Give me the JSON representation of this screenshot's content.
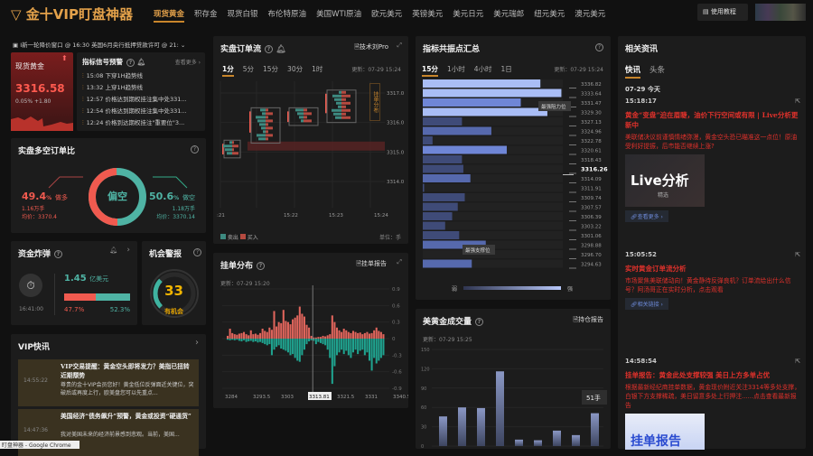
{
  "header": {
    "logo": "金十VIP盯盘神器",
    "nav": [
      "现货黄金",
      "积存金",
      "现货白银",
      "布伦特原油",
      "美国WTI原油",
      "欧元美元",
      "英镑美元",
      "美元日元",
      "美元瑞郎",
      "纽元美元",
      "澳元美元"
    ],
    "active_nav": "现货黄金",
    "tutorial": "使用教程"
  },
  "ticker": {
    "text": "I新一轮降价窗口 @ 16:30 英国6月央行抵押贷款许可 @ 21:"
  },
  "spot": {
    "name": "现货黄金",
    "price": "3316.58",
    "change_pct": "0.05%",
    "change": "+1.80"
  },
  "signals": {
    "title": "指标信号预警",
    "more": "查看更多 ›",
    "items": [
      {
        "time": "15:08",
        "text": "下穿1H趋势线"
      },
      {
        "time": "13:32",
        "text": "上穿1H趋势线"
      },
      {
        "time": "12:57",
        "text": "价格达到期权挂注集中处331..."
      },
      {
        "time": "12:54",
        "text": "价格达到期权挂注集中处331..."
      },
      {
        "time": "12:24",
        "text": "价格到达期权挂注\"重要位\"3..."
      }
    ]
  },
  "ratio": {
    "title": "实盘多空订单比",
    "center": "偏空",
    "long_pct": "49.4",
    "long_label": "做多",
    "long_lots": "1.16万手",
    "long_avg": "均价：3370.4",
    "short_pct": "50.6",
    "short_label": "做空",
    "short_lots": "1.18万手",
    "short_avg": "均价：3370.14",
    "pct_unit": "%",
    "long_value": 49.4
  },
  "bomb": {
    "title": "资金炸弹",
    "time": "16:41:00",
    "amount": "1.45",
    "unit": "亿美元",
    "left_pct": "47.7%",
    "right_pct": "52.3%",
    "left_value": 47.7
  },
  "alert": {
    "title": "机会警报",
    "value": "33",
    "label": "有机会",
    "gauge_value": 33
  },
  "vip": {
    "title": "VIP快讯",
    "items": [
      {
        "time": "14:55:22",
        "title": "VIP交易提醒：黄金空头即将发力？美指已扭转近期颓势",
        "body": "尊贵的金十VIP会员您好！黄金低位反弹面近关键位，突破后或再度上行，欧美盘您可以先重点..."
      },
      {
        "time": "14:47:36",
        "title": "美国经济“债务飙升”预警，黄金或投资“硬通货”",
        "body": "我对美国未来的经济前景感到悲观。当前，美国..."
      }
    ]
  },
  "orderflow": {
    "title": "实盘订单流",
    "pro": "技术刘Pro",
    "tabs": [
      "1分",
      "5分",
      "15分",
      "30分",
      "1时"
    ],
    "active": "1分",
    "updated": "更新：07-29 15:24",
    "side_tab": "挂单分布",
    "legend_sell": "卖出",
    "legend_buy": "买入",
    "unit": "单位：手",
    "yticks": [
      "3317.0",
      "3316.0",
      "3315.0",
      "3314.0"
    ],
    "xticks": [
      ":21",
      "15:22",
      "15:23",
      "15:24"
    ]
  },
  "depth": {
    "title": "挂单分布",
    "report": "挂单报告",
    "updated": "更新：07-29 15:20",
    "yticks": [
      "0.9",
      "0.6",
      "0.3",
      "0",
      "-0.3",
      "-0.6",
      "-0.9"
    ],
    "xticks": [
      "3284",
      "3293.5",
      "3303",
      "3313.81",
      "3321.5",
      "3331",
      "3340.5"
    ],
    "cursor": "3313.81"
  },
  "resonance": {
    "title": "指标共振点汇总",
    "tabs": [
      "15分",
      "1小时",
      "4小时",
      "1日"
    ],
    "active": "15分",
    "updated": "更新：07-29 15:24",
    "tip_resist": "最强阻力位",
    "tip_support": "最强支撑位",
    "weak": "弱",
    "strong": "强",
    "current": "3316.26"
  },
  "volume": {
    "title": "美黄金成交量",
    "report": "持仓报告",
    "updated": "更新：07-29 15:25",
    "tooltip": "51手"
  },
  "news": {
    "title": "相关资讯",
    "tabs": [
      "快讯",
      "头条"
    ],
    "active": "快讯",
    "date": "07-29 今天",
    "items": [
      {
        "time": "15:18:17",
        "title": "黄金“变盘”迫在眉睫，油价下行空间或有限 | Live分析更新中",
        "body": "美联储决议前谨慎情绪弥漫，黄金空头恐已瞄准这一点位！原油受利好提振，后市能否继续上涨?",
        "image": "Live分析",
        "image_sub": "精选",
        "link": "查看更多 ›"
      },
      {
        "time": "15:05:52",
        "title": "实时黄金订单流分析",
        "body": "市场聚焦美联储动向！黄金静待反弹良机？订单流给出什么信号？阿汤哥正在实时分析，点击观看",
        "link": "相关链接 ›"
      },
      {
        "time": "14:58:54",
        "title": "挂单报告：黄金此处支撑较强 美日上方多单占优",
        "body": "根据最新经纪商挂单数据，黄金现价附近关注3314等多处支撑，白银下方支撑稀疏，美日留意多处上行押注......点击查看最新报告",
        "image": "挂单报告"
      }
    ]
  },
  "taskbar": {
    "text": "盯盘神器 - Google Chrome"
  },
  "colors": {
    "accent": "#c8852b",
    "buy": "#f05a4f",
    "sell": "#4fb3a4",
    "bar": "#6f86d6"
  },
  "chart_data": [
    {
      "type": "bar",
      "name": "resonance",
      "categories": [
        "3336.82",
        "3333.64",
        "3331.47",
        "3329.30",
        "3327.13",
        "3324.96",
        "3322.78",
        "3320.61",
        "3318.43",
        "3316.26",
        "3314.09",
        "3311.91",
        "3309.74",
        "3307.57",
        "3306.39",
        "3303.22",
        "3301.06",
        "3298.88",
        "3296.70",
        "3294.63"
      ],
      "values": [
        0.84,
        0.99,
        0.7,
        0.89,
        0.28,
        0.49,
        0.07,
        0.6,
        0.28,
        0.29,
        0.34,
        0.01,
        0.3,
        0.25,
        0.21,
        0.16,
        0.26,
        0.45,
        0,
        0.35
      ],
      "orientation": "horizontal"
    },
    {
      "type": "bar",
      "name": "volume",
      "values": [
        46,
        60,
        59,
        116,
        10,
        9,
        24,
        17,
        51
      ],
      "yticks": [
        "150",
        "120",
        "90",
        "60",
        "30",
        "0"
      ],
      "ylim": [
        0,
        150
      ]
    },
    {
      "type": "bar",
      "name": "depth",
      "xlim": [
        3284,
        3345
      ],
      "ylim": [
        -0.9,
        0.9
      ],
      "buy": [
        0.05,
        0.18,
        0.1,
        0.08,
        0.07,
        0.09,
        0.1,
        0.12,
        0.08,
        0.06,
        0.15,
        0.08,
        0.09,
        0.07,
        0.1,
        0.18,
        0.14,
        0.12,
        0.2,
        0.16,
        0.5,
        0.22,
        0.3,
        0.28,
        0.52,
        0.32,
        0.3,
        0.26,
        0.35,
        0.38,
        0.42,
        0.58,
        0.45,
        0.4,
        0.25,
        0.2,
        0.05,
        0.02,
        0.02,
        0.03,
        0.03,
        0.05,
        0.04,
        0.06,
        0.08,
        0.42,
        0.3,
        0.2,
        0.15,
        0.12,
        0.18,
        0.15,
        0.12,
        0.1,
        0.14,
        0.12,
        0.1,
        0.11,
        0.08,
        0.1,
        0.12,
        0.09,
        0.1,
        0.15,
        0.2,
        0.14,
        0.12,
        0.08
      ],
      "sell": [
        -0.02,
        -0.03,
        -0.02,
        -0.03,
        -0.02,
        -0.04,
        -0.05,
        -0.03,
        -0.06,
        -0.05,
        -0.04,
        -0.06,
        -0.05,
        -0.07,
        -0.06,
        -0.08,
        -0.1,
        -0.12,
        -0.1,
        -0.3,
        -0.2,
        -0.15,
        -0.12,
        -0.18,
        -0.2,
        -0.22,
        -0.25,
        -0.3,
        -0.28,
        -0.35,
        -0.4,
        -0.42,
        -0.3,
        -0.2,
        -0.1,
        -0.05,
        -0.03,
        -0.04,
        -0.1,
        -0.06,
        -0.08,
        -0.1,
        -0.12,
        -0.2,
        -0.35,
        -0.82,
        -0.5,
        -0.3,
        -0.25,
        -0.2,
        -0.28,
        -0.22,
        -0.3,
        -0.35,
        -0.25,
        -0.2,
        -0.28,
        -0.22,
        -0.2,
        -0.3,
        -0.25,
        -0.4,
        -0.58,
        -0.35,
        -0.45,
        -0.4,
        -0.35,
        -0.3
      ]
    },
    {
      "type": "table",
      "name": "orderflow",
      "candles": [
        {
          "time": "15:21",
          "low": 3314.8,
          "high": 3315.4
        },
        {
          "time": "15:22",
          "low": 3315.3,
          "high": 3316.5
        },
        {
          "time": "15:23",
          "low": 3315.9,
          "high": 3316.5
        },
        {
          "time": "15:24",
          "low": 3316.0,
          "high": 3317.1
        }
      ],
      "highlight_price": 3315.2
    }
  ]
}
